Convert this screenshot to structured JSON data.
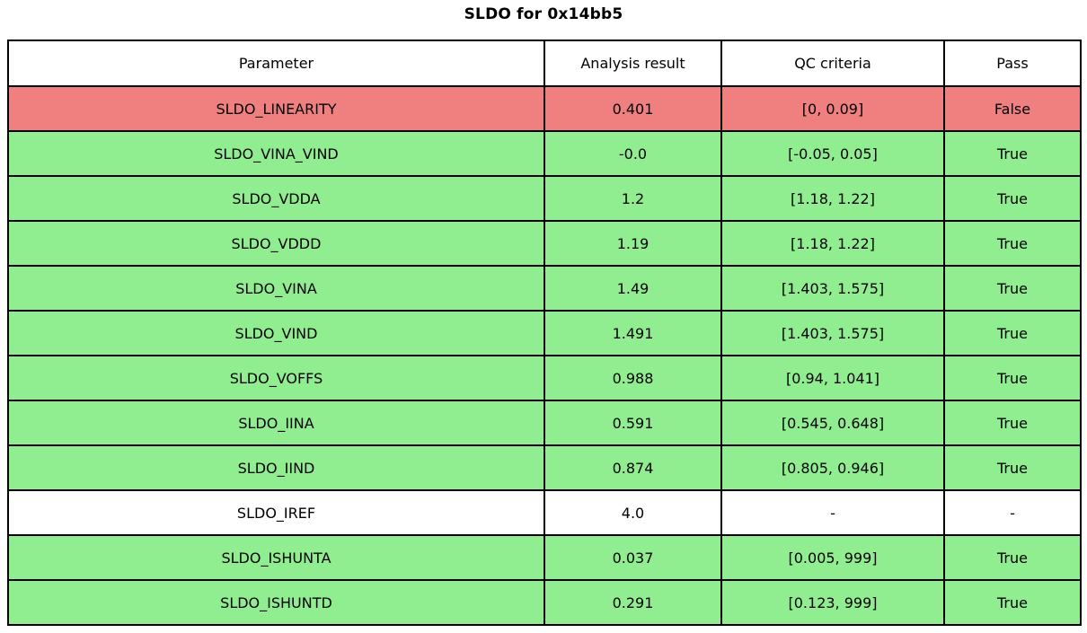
{
  "title": "SLDO for 0x14bb5",
  "table": {
    "headers": {
      "parameter": "Parameter",
      "result": "Analysis result",
      "criteria": "QC criteria",
      "pass": "Pass"
    },
    "rows": [
      {
        "parameter": "SLDO_LINEARITY",
        "result": "0.401",
        "criteria": "[0, 0.09]",
        "pass": "False",
        "status": "fail"
      },
      {
        "parameter": "SLDO_VINA_VIND",
        "result": "-0.0",
        "criteria": "[-0.05, 0.05]",
        "pass": "True",
        "status": "pass"
      },
      {
        "parameter": "SLDO_VDDA",
        "result": "1.2",
        "criteria": "[1.18, 1.22]",
        "pass": "True",
        "status": "pass"
      },
      {
        "parameter": "SLDO_VDDD",
        "result": "1.19",
        "criteria": "[1.18, 1.22]",
        "pass": "True",
        "status": "pass"
      },
      {
        "parameter": "SLDO_VINA",
        "result": "1.49",
        "criteria": "[1.403, 1.575]",
        "pass": "True",
        "status": "pass"
      },
      {
        "parameter": "SLDO_VIND",
        "result": "1.491",
        "criteria": "[1.403, 1.575]",
        "pass": "True",
        "status": "pass"
      },
      {
        "parameter": "SLDO_VOFFS",
        "result": "0.988",
        "criteria": "[0.94, 1.041]",
        "pass": "True",
        "status": "pass"
      },
      {
        "parameter": "SLDO_IINA",
        "result": "0.591",
        "criteria": "[0.545, 0.648]",
        "pass": "True",
        "status": "pass"
      },
      {
        "parameter": "SLDO_IIND",
        "result": "0.874",
        "criteria": "[0.805, 0.946]",
        "pass": "True",
        "status": "pass"
      },
      {
        "parameter": "SLDO_IREF",
        "result": "4.0",
        "criteria": "-",
        "pass": "-",
        "status": "none"
      },
      {
        "parameter": "SLDO_ISHUNTA",
        "result": "0.037",
        "criteria": "[0.005, 999]",
        "pass": "True",
        "status": "pass"
      },
      {
        "parameter": "SLDO_ISHUNTD",
        "result": "0.291",
        "criteria": "[0.123, 999]",
        "pass": "True",
        "status": "pass"
      }
    ]
  },
  "colors": {
    "pass": "#90ee90",
    "fail": "#f08080",
    "none": "#ffffff",
    "border": "#000000"
  },
  "chart_data": {
    "type": "table",
    "title": "SLDO for 0x14bb5",
    "columns": [
      "Parameter",
      "Analysis result",
      "QC criteria",
      "Pass"
    ],
    "rows": [
      [
        "SLDO_LINEARITY",
        0.401,
        "[0, 0.09]",
        false
      ],
      [
        "SLDO_VINA_VIND",
        -0.0,
        "[-0.05, 0.05]",
        true
      ],
      [
        "SLDO_VDDA",
        1.2,
        "[1.18, 1.22]",
        true
      ],
      [
        "SLDO_VDDD",
        1.19,
        "[1.18, 1.22]",
        true
      ],
      [
        "SLDO_VINA",
        1.49,
        "[1.403, 1.575]",
        true
      ],
      [
        "SLDO_VIND",
        1.491,
        "[1.403, 1.575]",
        true
      ],
      [
        "SLDO_VOFFS",
        0.988,
        "[0.94, 1.041]",
        true
      ],
      [
        "SLDO_IINA",
        0.591,
        "[0.545, 0.648]",
        true
      ],
      [
        "SLDO_IIND",
        0.874,
        "[0.805, 0.946]",
        true
      ],
      [
        "SLDO_IREF",
        4.0,
        null,
        null
      ],
      [
        "SLDO_ISHUNTA",
        0.037,
        "[0.005, 999]",
        true
      ],
      [
        "SLDO_ISHUNTD",
        0.291,
        "[0.123, 999]",
        true
      ]
    ],
    "row_colors": [
      "fail",
      "pass",
      "pass",
      "pass",
      "pass",
      "pass",
      "pass",
      "pass",
      "pass",
      "none",
      "pass",
      "pass"
    ],
    "legend_position": "none",
    "grid": true
  }
}
